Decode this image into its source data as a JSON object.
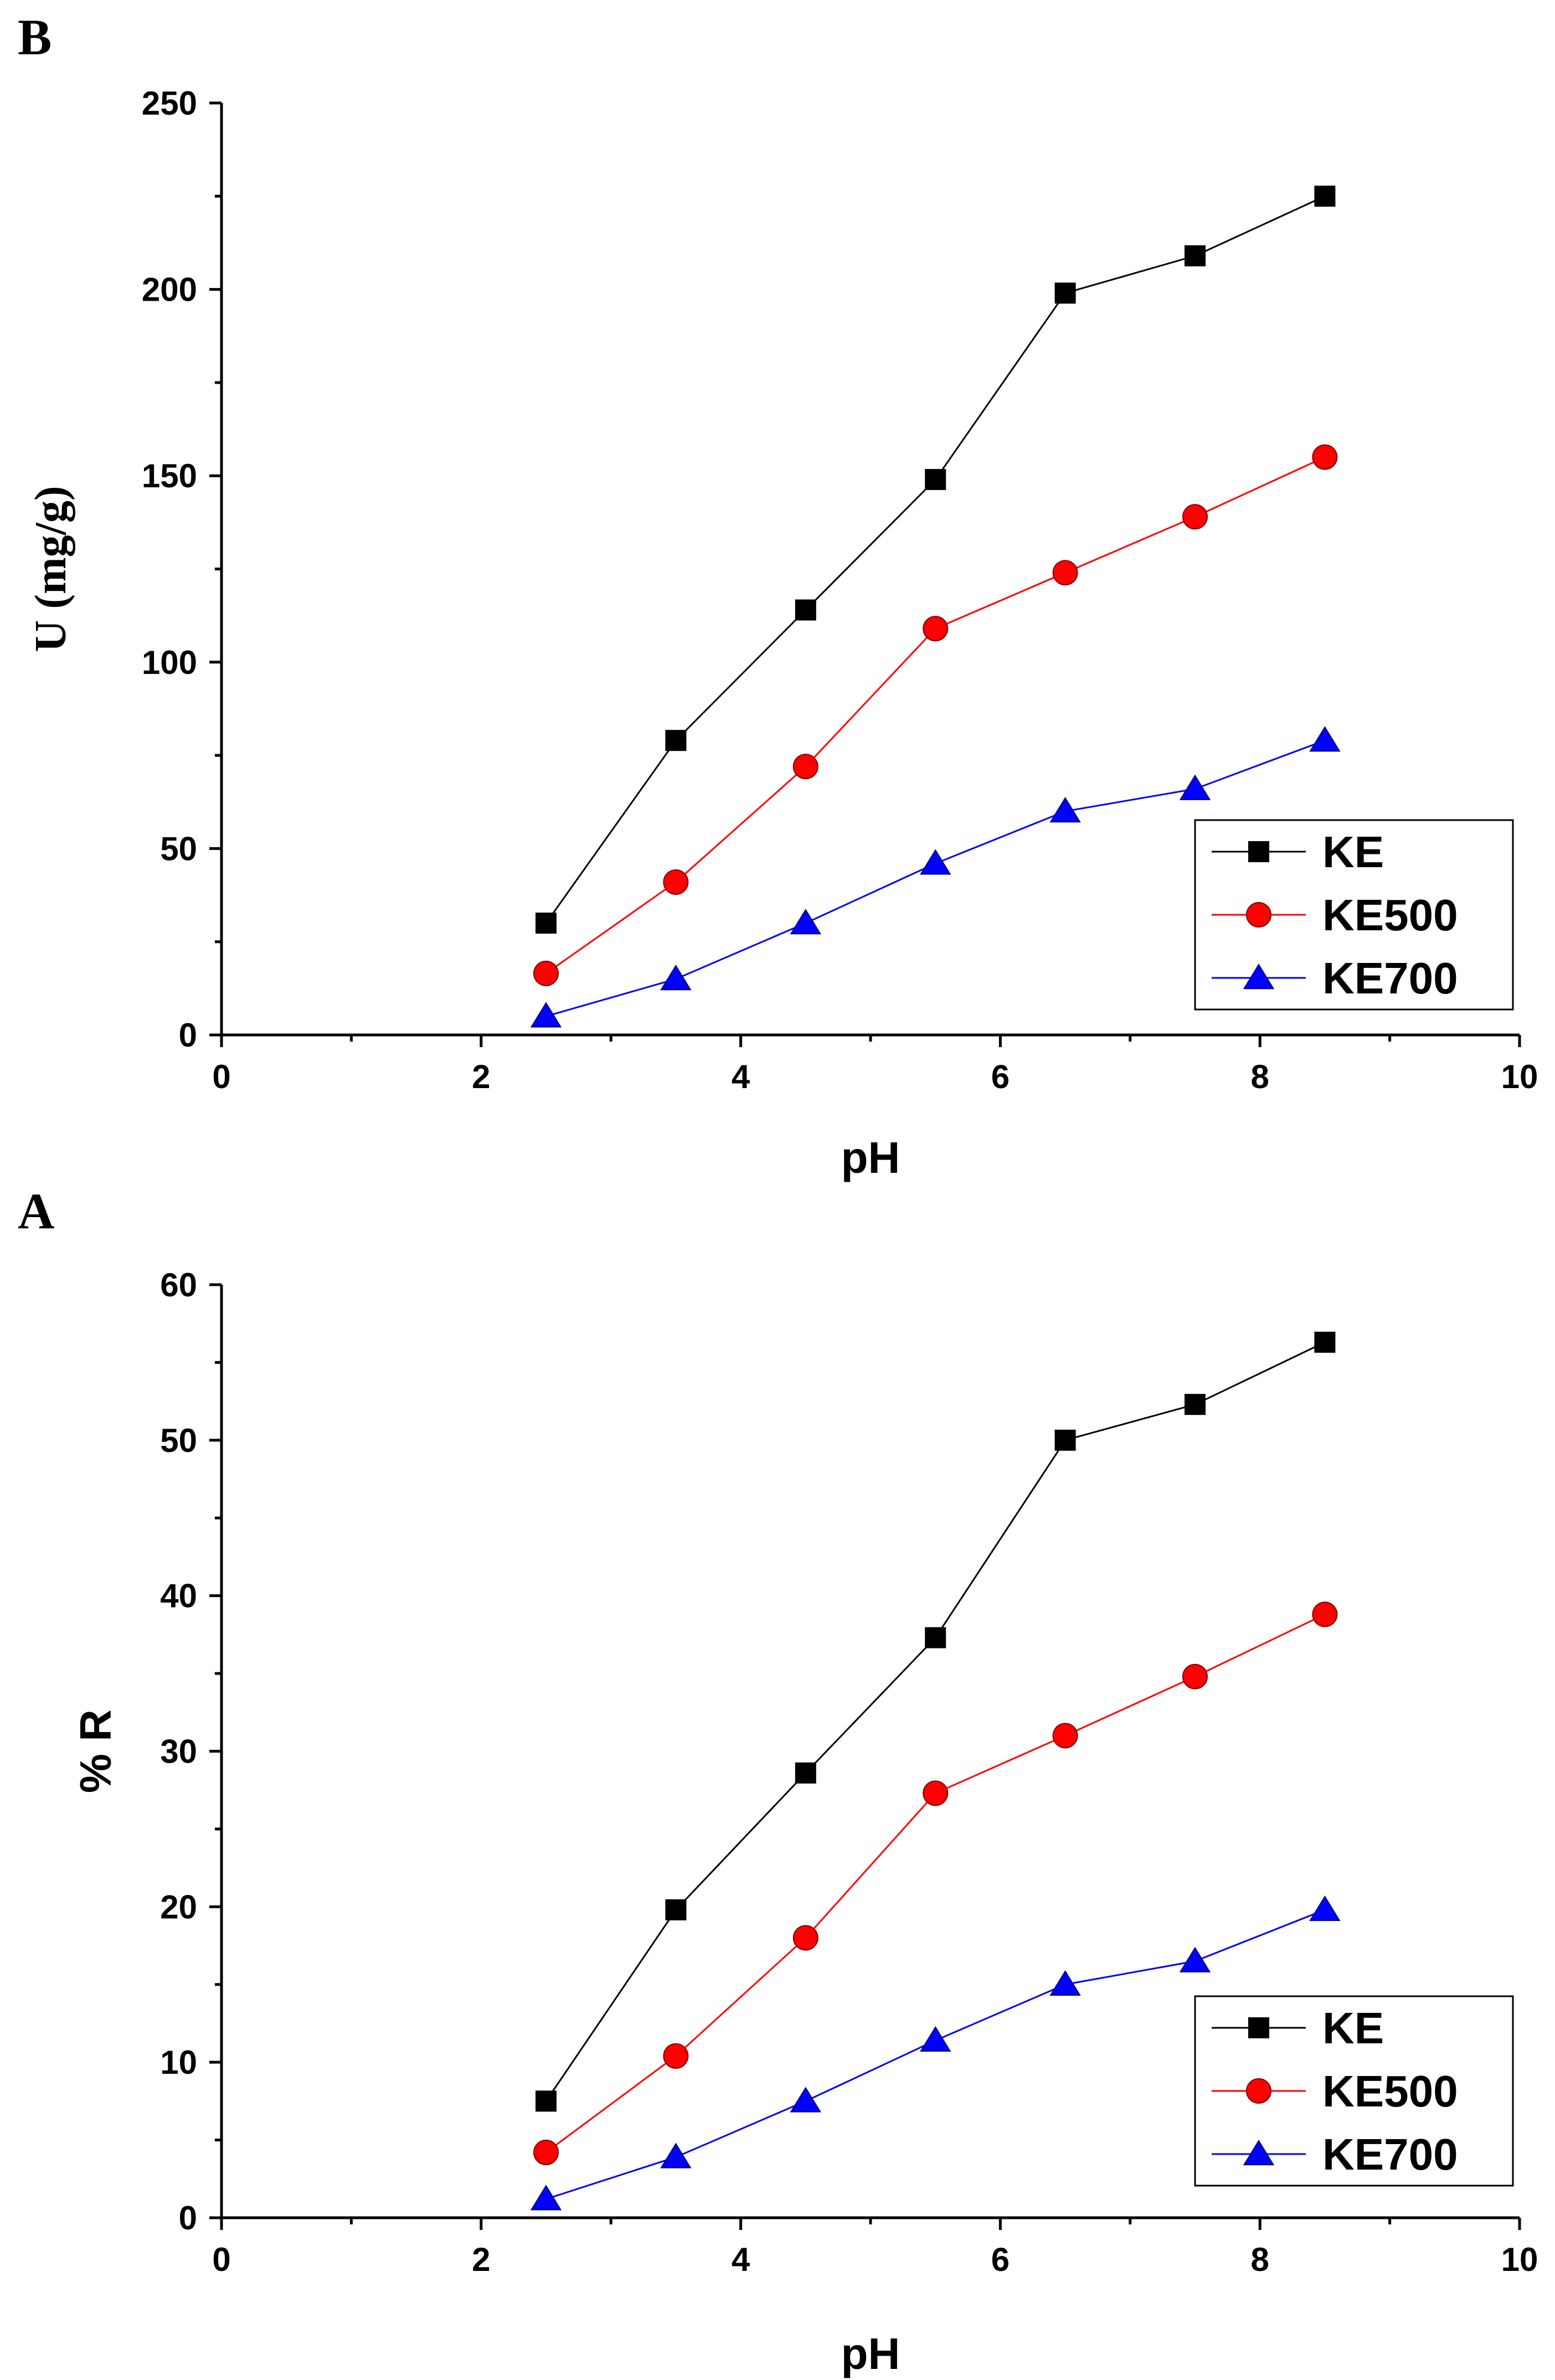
{
  "chart_data": [
    {
      "panel": "B",
      "type": "line",
      "xlabel": "pH",
      "ylabel": "U (mg/g)",
      "xlim": [
        0,
        10
      ],
      "ylim": [
        0,
        250
      ],
      "xticks": [
        0,
        2,
        4,
        6,
        8,
        10
      ],
      "yticks": [
        0,
        50,
        100,
        150,
        200,
        250
      ],
      "legend_position": "bottom-right",
      "x": [
        2.5,
        3.5,
        4.5,
        5.5,
        6.5,
        7.5,
        8.5
      ],
      "series": [
        {
          "name": "KE",
          "marker": "square",
          "color": "#000000",
          "values": [
            30,
            79,
            114,
            149,
            199,
            209,
            225
          ]
        },
        {
          "name": "KE500",
          "marker": "circle",
          "color": "#ff0000",
          "values": [
            16.5,
            41,
            72,
            109,
            124,
            139,
            155
          ]
        },
        {
          "name": "KE700",
          "marker": "triangle",
          "color": "#0000ff",
          "values": [
            5,
            15,
            30,
            46,
            60,
            66,
            79
          ]
        }
      ]
    },
    {
      "panel": "A",
      "type": "line",
      "xlabel": "pH",
      "ylabel": "% R",
      "xlim": [
        0,
        10
      ],
      "ylim": [
        0,
        60
      ],
      "xticks": [
        0,
        2,
        4,
        6,
        8,
        10
      ],
      "yticks": [
        0,
        10,
        20,
        30,
        40,
        50,
        60
      ],
      "legend_position": "bottom-right",
      "x": [
        2.5,
        3.5,
        4.5,
        5.5,
        6.5,
        7.5,
        8.5
      ],
      "series": [
        {
          "name": "KE",
          "marker": "square",
          "color": "#000000",
          "values": [
            7.5,
            19.8,
            28.6,
            37.3,
            50.0,
            52.3,
            56.3
          ]
        },
        {
          "name": "KE500",
          "marker": "circle",
          "color": "#ff0000",
          "values": [
            4.2,
            10.4,
            18.0,
            27.3,
            31.0,
            34.8,
            38.8
          ]
        },
        {
          "name": "KE700",
          "marker": "triangle",
          "color": "#0000ff",
          "values": [
            1.2,
            3.9,
            7.5,
            11.4,
            15.0,
            16.5,
            19.8
          ]
        }
      ]
    }
  ]
}
